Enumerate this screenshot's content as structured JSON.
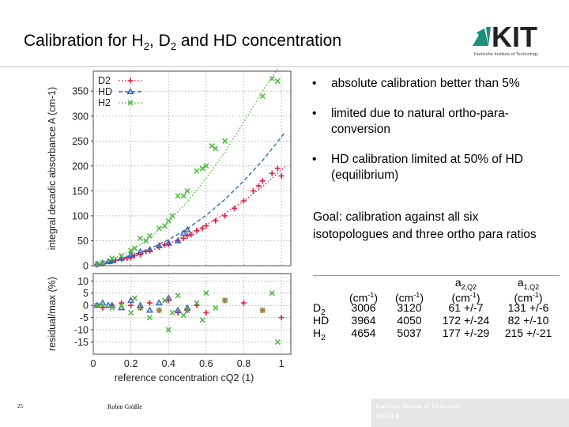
{
  "slide": {
    "title_parts": [
      "Calibration for H",
      "2",
      ", D",
      "2",
      " and HD concentration"
    ],
    "logo": {
      "text": "KIT",
      "tagline": "Karlsruhe Institute of Technology"
    },
    "bullets": [
      "absolute calibration better than 5%",
      "limited due to natural ortho-para-conversion",
      "HD calibration limited at 50% of HD (equilibrium)"
    ],
    "goal_text": "Goal: calibration against all six isotopologues and three ortho para ratios",
    "bullet_symbol": "•",
    "footer": {
      "slide_number": "25",
      "author": "Robin Größle",
      "institute_line1": "Karlsruhe Institute of Technology",
      "institute_line2": "IKP-TLK"
    }
  },
  "parameters_table": {
    "header_unit": "(cm-1)",
    "header_a2": "a2,Q2",
    "header_a1": "a1,Q2",
    "rows": [
      {
        "species": "D2",
        "v1": "3006",
        "v2": "3120",
        "a2": "61 +/-7",
        "a1": "131 +/-6"
      },
      {
        "species": "HD",
        "v1": "3964",
        "v2": "4050",
        "a2": "172 +/-24",
        "a1": "82 +/-10"
      },
      {
        "species": "H2",
        "v1": "4654",
        "v2": "5037",
        "a2": "177 +/-29",
        "a1": "215 +/-21"
      }
    ]
  },
  "chart_data": [
    {
      "type": "scatter",
      "panel": "top",
      "ylabel": "integral decadic absorbance A (cm-1)",
      "xlim": [
        0,
        1.05
      ],
      "ylim": [
        0,
        390
      ],
      "yticks": [
        0,
        50,
        100,
        150,
        200,
        250,
        300,
        350
      ],
      "grid": true,
      "legend_position": "top-left",
      "legend": [
        "D2",
        "HD",
        "H2"
      ],
      "series": [
        {
          "name": "D2",
          "color": "#dd2244",
          "marker": "plus",
          "fit": "dotted",
          "points": [
            [
              0.02,
              2
            ],
            [
              0.05,
              4
            ],
            [
              0.1,
              9
            ],
            [
              0.12,
              11
            ],
            [
              0.15,
              13
            ],
            [
              0.18,
              15
            ],
            [
              0.2,
              16
            ],
            [
              0.22,
              20
            ],
            [
              0.25,
              22
            ],
            [
              0.28,
              28
            ],
            [
              0.3,
              30
            ],
            [
              0.35,
              37
            ],
            [
              0.38,
              42
            ],
            [
              0.4,
              43
            ],
            [
              0.45,
              50
            ],
            [
              0.48,
              55
            ],
            [
              0.5,
              60
            ],
            [
              0.52,
              62
            ],
            [
              0.55,
              70
            ],
            [
              0.58,
              75
            ],
            [
              0.6,
              80
            ],
            [
              0.65,
              90
            ],
            [
              0.7,
              100
            ],
            [
              0.75,
              115
            ],
            [
              0.8,
              130
            ],
            [
              0.85,
              150
            ],
            [
              0.88,
              160
            ],
            [
              0.9,
              170
            ],
            [
              0.95,
              185
            ],
            [
              0.98,
              195
            ],
            [
              1.0,
              180
            ]
          ],
          "fit_points": [
            [
              0,
              0
            ],
            [
              0.1,
              7
            ],
            [
              0.2,
              17
            ],
            [
              0.3,
              29
            ],
            [
              0.4,
              44
            ],
            [
              0.5,
              62
            ],
            [
              0.6,
              82
            ],
            [
              0.7,
              105
            ],
            [
              0.8,
              130
            ],
            [
              0.9,
              158
            ],
            [
              1.0,
              192
            ],
            [
              1.02,
              199
            ]
          ]
        },
        {
          "name": "HD",
          "color": "#3366bb",
          "marker": "triangle",
          "fit": "dashed",
          "points": [
            [
              0.02,
              3
            ],
            [
              0.05,
              5
            ],
            [
              0.08,
              8
            ],
            [
              0.1,
              10
            ],
            [
              0.15,
              15
            ],
            [
              0.2,
              22
            ],
            [
              0.25,
              28
            ],
            [
              0.3,
              32
            ],
            [
              0.35,
              40
            ],
            [
              0.4,
              45
            ],
            [
              0.45,
              50
            ],
            [
              0.48,
              65
            ],
            [
              0.5,
              72
            ]
          ],
          "fit_points": [
            [
              0,
              0
            ],
            [
              0.1,
              9
            ],
            [
              0.2,
              20
            ],
            [
              0.3,
              34
            ],
            [
              0.4,
              52
            ],
            [
              0.5,
              74
            ],
            [
              0.6,
              101
            ],
            [
              0.7,
              133
            ],
            [
              0.8,
              170
            ],
            [
              0.9,
              211
            ],
            [
              1.0,
              258
            ],
            [
              1.02,
              269
            ]
          ]
        },
        {
          "name": "H2",
          "color": "#55bb44",
          "marker": "cross",
          "fit": "dotted",
          "points": [
            [
              0.02,
              3
            ],
            [
              0.05,
              5
            ],
            [
              0.1,
              15
            ],
            [
              0.15,
              20
            ],
            [
              0.2,
              30
            ],
            [
              0.22,
              35
            ],
            [
              0.25,
              55
            ],
            [
              0.28,
              50
            ],
            [
              0.3,
              60
            ],
            [
              0.35,
              75
            ],
            [
              0.38,
              80
            ],
            [
              0.4,
              90
            ],
            [
              0.42,
              100
            ],
            [
              0.45,
              140
            ],
            [
              0.48,
              140
            ],
            [
              0.5,
              150
            ],
            [
              0.55,
              190
            ],
            [
              0.58,
              195
            ],
            [
              0.6,
              200
            ],
            [
              0.63,
              240
            ],
            [
              0.65,
              235
            ],
            [
              0.7,
              250
            ],
            [
              0.9,
              340
            ],
            [
              0.95,
              375
            ],
            [
              0.98,
              370
            ]
          ],
          "fit_points": [
            [
              0,
              0
            ],
            [
              0.1,
              12
            ],
            [
              0.2,
              30
            ],
            [
              0.3,
              55
            ],
            [
              0.4,
              88
            ],
            [
              0.5,
              128
            ],
            [
              0.6,
              175
            ],
            [
              0.7,
              228
            ],
            [
              0.8,
              288
            ],
            [
              0.9,
              350
            ],
            [
              0.98,
              395
            ]
          ]
        }
      ]
    },
    {
      "type": "scatter",
      "panel": "bottom",
      "ylabel": "residual/max (%)",
      "xlabel": "reference concentration cQ2 (1)",
      "xlim": [
        0,
        1.05
      ],
      "ylim": [
        -20,
        13
      ],
      "yticks": [
        10,
        5,
        0,
        -5,
        -10,
        -15
      ],
      "ytick_labels": [
        "10",
        "5",
        "0",
        "-5",
        "-10",
        "-15"
      ],
      "xticks": [
        0,
        0.2,
        0.4,
        0.6,
        0.8,
        1
      ],
      "xtick_labels": [
        "0",
        "0.2",
        "0.4",
        "0.6",
        "0.8",
        "1"
      ],
      "grid": true,
      "series": [
        {
          "name": "D2",
          "color": "#dd2244",
          "marker": "plus",
          "points": [
            [
              0.02,
              0
            ],
            [
              0.05,
              -1
            ],
            [
              0.1,
              0
            ],
            [
              0.15,
              1
            ],
            [
              0.2,
              0
            ],
            [
              0.25,
              -1
            ],
            [
              0.3,
              1
            ],
            [
              0.35,
              -2
            ],
            [
              0.4,
              2
            ],
            [
              0.45,
              -3
            ],
            [
              0.5,
              -2
            ],
            [
              0.55,
              0
            ],
            [
              0.6,
              -3
            ],
            [
              0.7,
              2
            ],
            [
              0.8,
              1
            ],
            [
              0.9,
              -2
            ],
            [
              1.0,
              -5
            ]
          ]
        },
        {
          "name": "HD",
          "color": "#3366bb",
          "marker": "triangle",
          "points": [
            [
              0.02,
              0
            ],
            [
              0.05,
              1
            ],
            [
              0.08,
              0
            ],
            [
              0.1,
              0
            ],
            [
              0.15,
              -1
            ],
            [
              0.2,
              2
            ],
            [
              0.25,
              0
            ],
            [
              0.3,
              -2
            ],
            [
              0.35,
              1
            ],
            [
              0.4,
              3
            ],
            [
              0.45,
              -2
            ],
            [
              0.5,
              -1
            ]
          ]
        },
        {
          "name": "H2",
          "color": "#55bb44",
          "marker": "cross",
          "points": [
            [
              0.02,
              0
            ],
            [
              0.05,
              0
            ],
            [
              0.1,
              -1
            ],
            [
              0.15,
              0
            ],
            [
              0.2,
              -3
            ],
            [
              0.22,
              3
            ],
            [
              0.25,
              -1
            ],
            [
              0.3,
              -5
            ],
            [
              0.35,
              -2
            ],
            [
              0.38,
              2
            ],
            [
              0.4,
              -10
            ],
            [
              0.42,
              -3
            ],
            [
              0.45,
              4
            ],
            [
              0.48,
              -4
            ],
            [
              0.5,
              -2
            ],
            [
              0.55,
              1
            ],
            [
              0.58,
              -6
            ],
            [
              0.6,
              5
            ],
            [
              0.65,
              -1
            ],
            [
              0.7,
              2
            ],
            [
              0.9,
              -2
            ],
            [
              0.95,
              5
            ],
            [
              0.98,
              -15
            ]
          ]
        }
      ]
    }
  ]
}
